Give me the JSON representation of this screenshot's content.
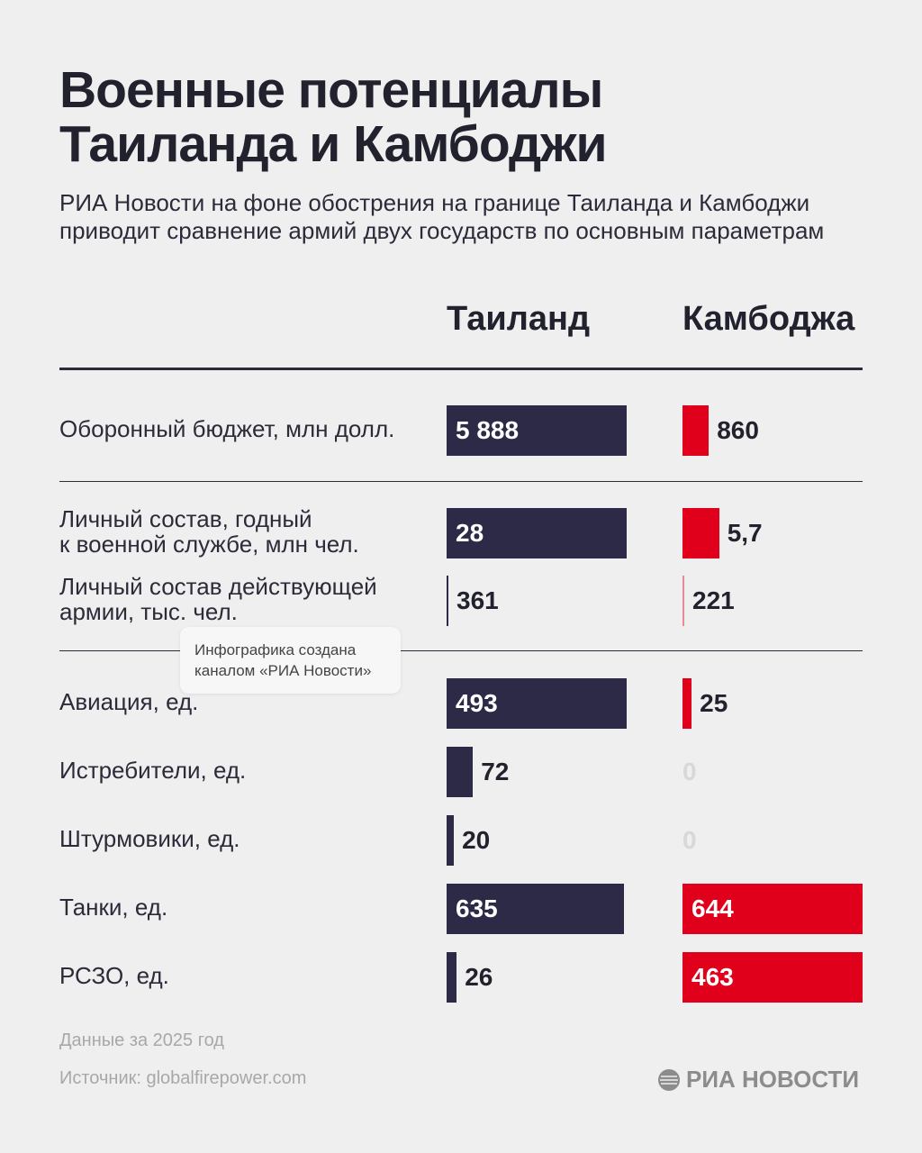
{
  "title_lines": [
    "Военные потенциалы",
    "Таиланда и Камбоджи"
  ],
  "subtitle": "РИА Новости на фоне обострения на границе Таиланда и Камбоджи приводит сравнение армий двух государств по основным параметрам",
  "tooltip_lines": [
    "Инфографика создана",
    "каналом «РИА Новости»"
  ],
  "footer": {
    "note": "Данные за 2025 год",
    "source": "Источник: globalfirepower.com",
    "logo": "РИА НОВОСТИ"
  },
  "colors": {
    "thailand": "#2d2a48",
    "cambodia": "#e0001b"
  },
  "chart_data": {
    "type": "bar",
    "title": "Военные потенциалы Таиланда и Камбоджи",
    "series_names": [
      "Таиланд",
      "Камбоджа"
    ],
    "rows": [
      {
        "label": [
          "Оборонный бюджет, млн долл."
        ],
        "thailand": 5888,
        "cambodia": 860,
        "thailand_text": "5 888",
        "cambodia_text": "860",
        "scale_max": 5888
      },
      {
        "label": [
          "Личный состав, годный",
          "к военной службе, млн чел."
        ],
        "thailand": 28,
        "cambodia": 5.7,
        "thailand_text": "28",
        "cambodia_text": "5,7",
        "scale_max": 28
      },
      {
        "label": [
          "Личный состав действующей",
          "армии, тыс. чел."
        ],
        "thailand": 361,
        "cambodia": 221,
        "thailand_text": "361",
        "cambodia_text": "221",
        "scale_max": 36100
      },
      {
        "label": [
          "Авиация, ед."
        ],
        "thailand": 493,
        "cambodia": 25,
        "thailand_text": "493",
        "cambodia_text": "25",
        "scale_max": 493
      },
      {
        "label": [
          "Истребители, ед."
        ],
        "thailand": 72,
        "cambodia": 0,
        "thailand_text": "72",
        "cambodia_text": "0",
        "scale_max": 493
      },
      {
        "label": [
          "Штурмовики, ед."
        ],
        "thailand": 20,
        "cambodia": 0,
        "thailand_text": "20",
        "cambodia_text": "0",
        "scale_max": 493
      },
      {
        "label": [
          "Танки, ед."
        ],
        "thailand": 635,
        "cambodia": 644,
        "thailand_text": "635",
        "cambodia_text": "644",
        "scale_max": 644
      },
      {
        "label": [
          "РСЗО, ед."
        ],
        "thailand": 26,
        "cambodia": 463,
        "thailand_text": "26",
        "cambodia_text": "463",
        "scale_max": 463
      }
    ]
  }
}
